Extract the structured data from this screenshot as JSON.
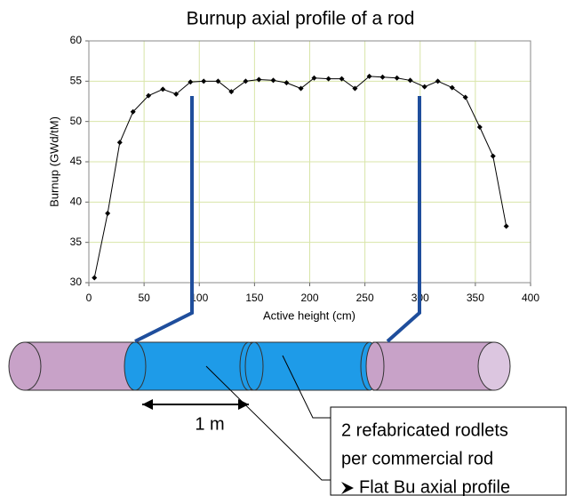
{
  "chart_data": {
    "type": "line",
    "title": "Burnup axial profile of a rod",
    "x_label": "Active height (cm)",
    "y_label": "Burnup (GWd/tM)",
    "xlim": [
      0,
      400
    ],
    "xticks": [
      0,
      50,
      100,
      150,
      200,
      250,
      300,
      350,
      400
    ],
    "ylim": [
      30,
      60
    ],
    "yticks": [
      30,
      35,
      40,
      45,
      50,
      55,
      60
    ],
    "grid": true,
    "series": [
      {
        "color": "#000000",
        "x": [
          5,
          17,
          28,
          40,
          54,
          67,
          79,
          92,
          104,
          117,
          129,
          142,
          154,
          167,
          179,
          192,
          204,
          217,
          229,
          241,
          254,
          266,
          279,
          291,
          304,
          316,
          329,
          341,
          354,
          366,
          378
        ],
        "values": [
          30.6,
          38.6,
          47.4,
          51.2,
          53.2,
          54.0,
          53.4,
          54.9,
          55.0,
          55.0,
          53.7,
          55.0,
          55.2,
          55.1,
          54.8,
          54.1,
          55.4,
          55.3,
          55.3,
          54.1,
          55.6,
          55.5,
          55.4,
          55.1,
          54.3,
          55.0,
          54.2,
          53.0,
          49.3,
          45.7,
          37.0
        ]
      }
    ],
    "annotations": [
      "1 m",
      "2 refabricated rodlets",
      "per commercial rod",
      "Flat Bu axial profile"
    ]
  }
}
